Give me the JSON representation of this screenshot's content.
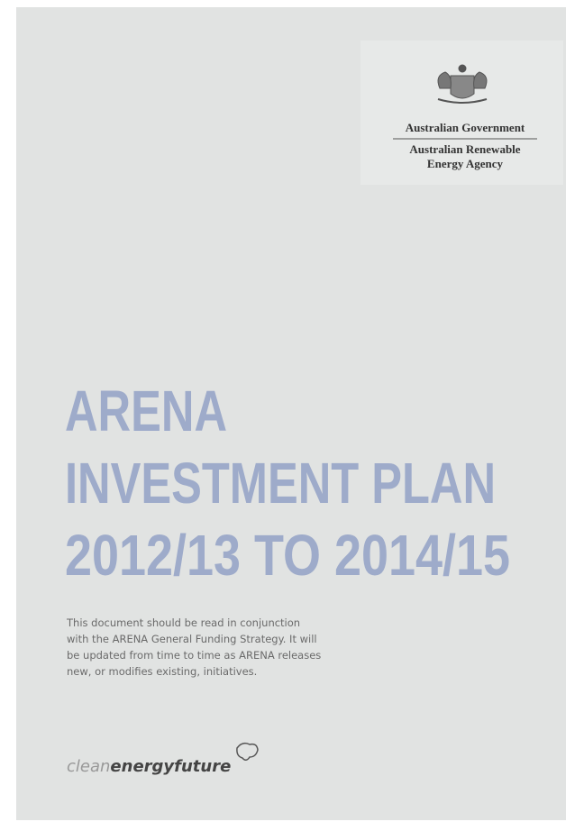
{
  "logo": {
    "government": "Australian Government",
    "agency_lines": [
      "Australian Renewable",
      "Energy Agency"
    ]
  },
  "title_lines": [
    "ARENA",
    "INVESTMENT PLAN",
    "2012/13 TO 2014/15"
  ],
  "body_lines": [
    "This document should be read in conjunction",
    "with the ARENA General Funding Strategy. It will",
    "be updated from time to time as ARENA releases",
    "new, or modifies existing, initiatives."
  ],
  "footer_logo": {
    "light": "clean",
    "bold": "energyfuture"
  }
}
